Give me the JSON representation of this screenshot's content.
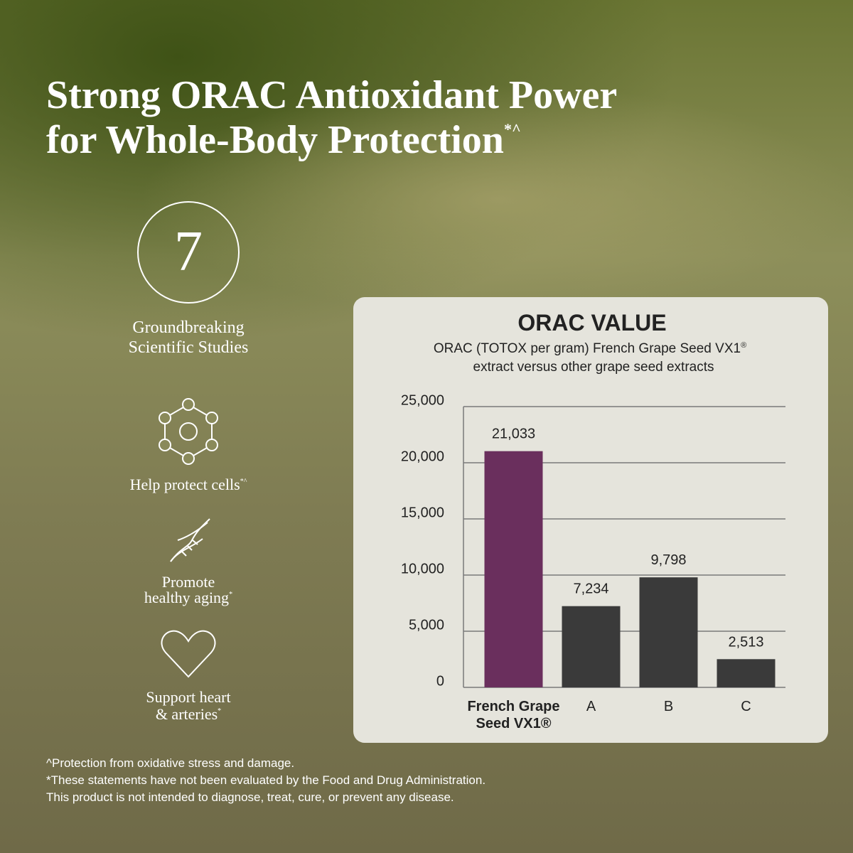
{
  "header": {
    "title": [
      "Strong ORAC Antioxidant Power",
      "for Whole-Body Protection"
    ],
    "title_mark": "*^"
  },
  "features": [
    {
      "number": "7",
      "label": [
        "Groundbreaking",
        "Scientific Studies"
      ]
    },
    {
      "label": [
        "Help protect cells"
      ],
      "mark": "*^"
    },
    {
      "label": [
        "Promote",
        "healthy aging"
      ],
      "mark": "*"
    },
    {
      "label": [
        "Support heart",
        "& arteries"
      ],
      "mark": "*"
    }
  ],
  "footnotes": [
    "^Protection from oxidative stress and damage.",
    "*These statements have not been evaluated by the Food and Drug Administration.",
    "This product is not intended to diagnose, treat, cure, or prevent any disease."
  ],
  "chart_data": {
    "type": "bar",
    "title": "ORAC VALUE",
    "subtitle": [
      "ORAC (TOTOX per gram) French Grape Seed VX1",
      "extract versus other grape seed extracts"
    ],
    "subtitle_mark": "®",
    "categories": [
      "French Grape Seed VX1®",
      "A",
      "B",
      "C"
    ],
    "values": [
      21033,
      7234,
      9798,
      2513
    ],
    "value_labels": [
      "21,033",
      "7,234",
      "9,798",
      "2,513"
    ],
    "colors": [
      "#6a2f5d",
      "#3a3a3a",
      "#3a3a3a",
      "#3a3a3a"
    ],
    "ylim": [
      0,
      25000
    ],
    "yticks": [
      0,
      {
        "value": 5000,
        "label": "5,000"
      },
      {
        "value": 10000,
        "label": "10,000"
      },
      {
        "value": 15000,
        "label": "15,000"
      },
      {
        "value": 20000,
        "label": "20,000"
      },
      {
        "value": 25000,
        "label": "25,000"
      }
    ],
    "grid": true
  }
}
